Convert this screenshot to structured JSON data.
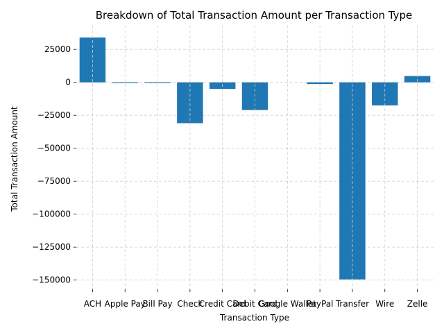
{
  "chart_data": {
    "type": "bar",
    "title": "Breakdown of Total Transaction Amount per Transaction Type",
    "xlabel": "Transaction Type",
    "ylabel": "Total Transaction Amount",
    "categories": [
      "ACH",
      "Apple Pay",
      "Bill Pay",
      "Check",
      "Credit Card",
      "Debit Card",
      "Google Wallet",
      "PayPal",
      "Transfer",
      "Wire",
      "Zelle"
    ],
    "values": [
      34000,
      -600,
      -600,
      -31000,
      -5000,
      -21000,
      0,
      -1300,
      -149500,
      -17500,
      4800
    ],
    "ylim": [
      -157000,
      43000
    ],
    "yticks": [
      -150000,
      -125000,
      -100000,
      -75000,
      -50000,
      -25000,
      0,
      25000
    ],
    "ytick_labels": [
      "−150000",
      "−125000",
      "−100000",
      "−75000",
      "−50000",
      "−25000",
      "0",
      "25000"
    ],
    "grid": true,
    "bar_color": "#1f77b4"
  }
}
